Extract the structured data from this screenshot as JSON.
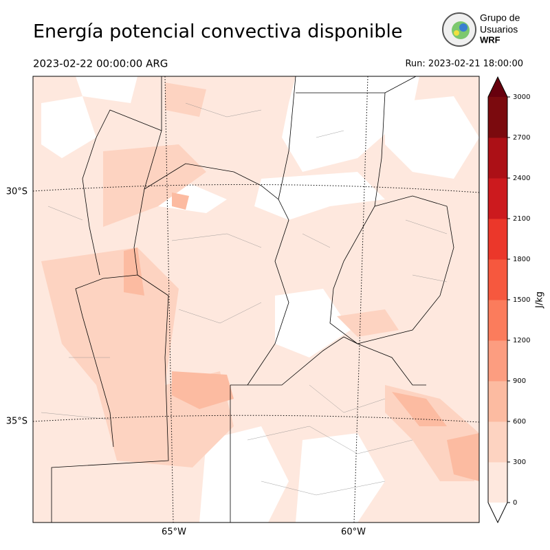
{
  "header": {
    "title": "Energía potencial convectiva disponible",
    "valid_time": "2023-02-22 00:00:00 ARG",
    "run": "Run: 2023-02-21 18:00:00"
  },
  "logo": {
    "line1": "Grupo de",
    "line2": "Usuarios",
    "line3": "WRF"
  },
  "map": {
    "lat_labels": [
      "30°S",
      "35°S"
    ],
    "lon_labels": [
      "65°W",
      "60°W"
    ]
  },
  "colorbar": {
    "label": "J/kg",
    "ticks": [
      0,
      300,
      600,
      900,
      1200,
      1500,
      1800,
      2100,
      2400,
      2700,
      3000
    ],
    "colors": [
      "#fee8de",
      "#fdd3c1",
      "#fcbba1",
      "#fc9d80",
      "#fb7c5c",
      "#f6583e",
      "#eb372a",
      "#cc1a1e",
      "#ac1016",
      "#7b0a0e"
    ],
    "over_color": "#67000d",
    "under_color": "#ffffff"
  }
}
